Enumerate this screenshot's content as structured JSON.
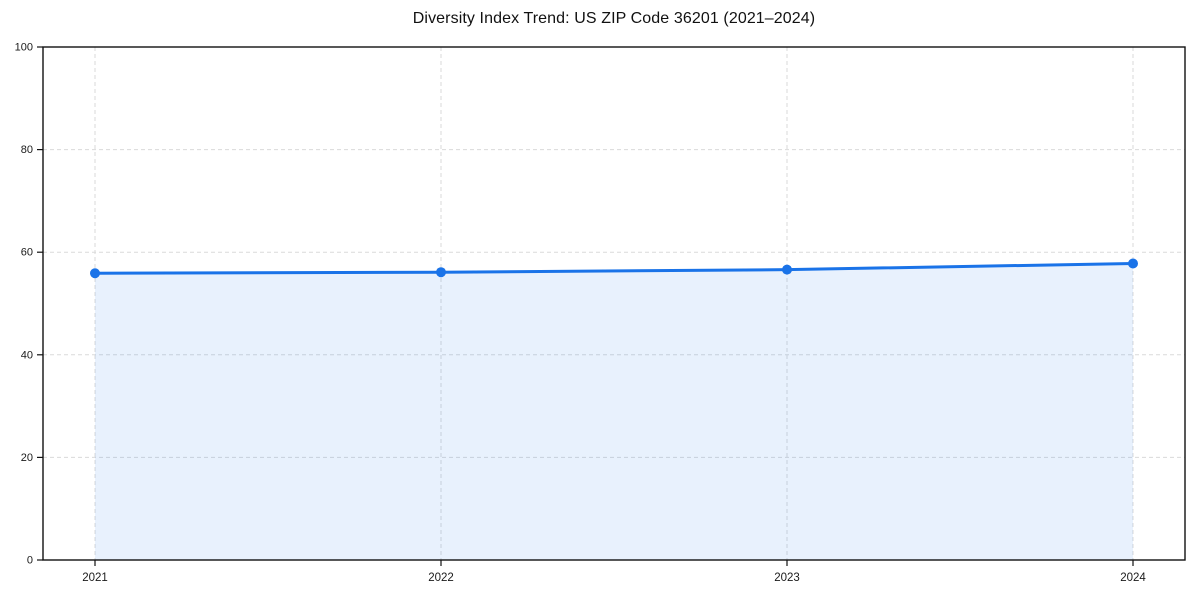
{
  "page": {
    "background": "#ffffff"
  },
  "chart_data": {
    "type": "line",
    "title": "Diversity Index Trend: US ZIP Code 36201 (2021–2024)",
    "x": [
      "2021",
      "2022",
      "2023",
      "2024"
    ],
    "series": [
      {
        "name": "Diversity Index",
        "values": [
          55.9,
          56.1,
          56.6,
          57.8
        ]
      }
    ],
    "xlabel": "",
    "ylabel": "",
    "ylim": [
      0,
      100
    ],
    "yticks": [
      0,
      20,
      40,
      60,
      80,
      100
    ],
    "grid": true,
    "grid_style": "dashed",
    "area_fill": true,
    "legend": "none",
    "colors": {
      "line": "#1a73e8",
      "marker": "#1a73e8",
      "area_fill": "rgba(26,115,232,0.10)",
      "grid": "#dadada",
      "spine": "#111111",
      "tick_label": "#1a1a1a",
      "title": "#111111"
    }
  }
}
